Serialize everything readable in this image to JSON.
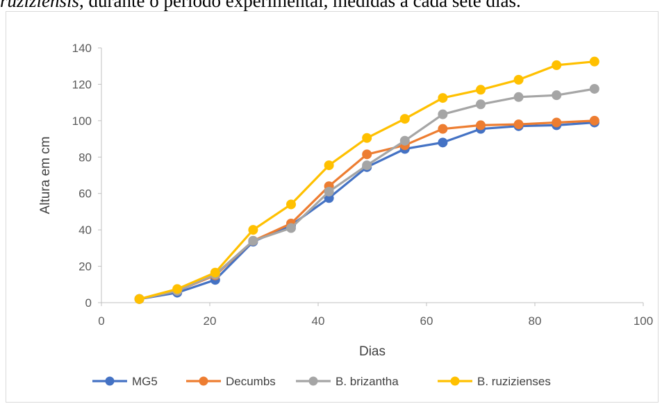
{
  "caption": {
    "italic_part": "ruziziensis",
    "rest": ", durante o período experimental, medidas a cada sete dias."
  },
  "chart_data": {
    "type": "line",
    "title": "",
    "xlabel": "Dias",
    "ylabel": "Altura em cm",
    "xlim": [
      0,
      100
    ],
    "ylim": [
      0,
      140
    ],
    "xticks": [
      0,
      20,
      40,
      60,
      80,
      100
    ],
    "yticks": [
      0,
      20,
      40,
      60,
      80,
      100,
      120,
      140
    ],
    "grid": false,
    "legend_position": "bottom",
    "x": [
      7,
      14,
      21,
      28,
      35,
      42,
      49,
      56,
      63,
      70,
      77,
      84,
      91
    ],
    "series": [
      {
        "name": "MG5",
        "color": "#4472C4",
        "values": [
          2,
          5.5,
          12.5,
          33.5,
          42.5,
          57.5,
          74.5,
          84.5,
          88,
          95.5,
          97,
          97.5,
          99
        ]
      },
      {
        "name": "Decumbs",
        "color": "#ED7D31",
        "values": [
          2,
          6.5,
          15,
          34,
          43.5,
          64,
          81.5,
          86.5,
          95.5,
          97.5,
          98,
          99,
          100
        ]
      },
      {
        "name": "B. brizantha",
        "color": "#A5A5A5",
        "values": [
          2,
          6.5,
          15.5,
          34,
          41,
          61,
          75.5,
          89,
          103.5,
          109,
          113,
          114,
          117.5
        ]
      },
      {
        "name": "B. ruzizienses",
        "color": "#FFC000",
        "values": [
          2,
          7.5,
          16.5,
          40,
          54,
          75.5,
          90.5,
          101,
          112.5,
          117,
          122.5,
          130.5,
          132.5
        ]
      }
    ]
  }
}
